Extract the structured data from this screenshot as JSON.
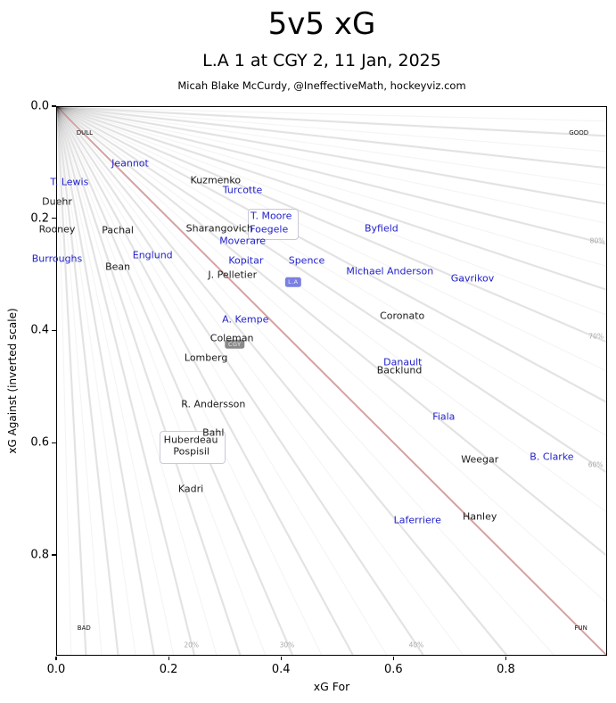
{
  "chart_data": {
    "type": "scatter",
    "title": "5v5 xG",
    "subtitle": "L.A 1 at CGY 2, 11 Jan, 2025",
    "attribution": "Micah Blake McCurdy, @IneffectiveMath, hockeyviz.com",
    "xlabel": "xG For",
    "ylabel": "xG Against (inverted scale)",
    "xlim": [
      0,
      0.98
    ],
    "ylim": [
      0,
      0.98
    ],
    "y_axis_inverted": true,
    "grid": "radial-percentage-fan",
    "x_ticks": {
      "values": [
        0,
        0.2,
        0.4,
        0.6,
        0.8
      ],
      "labels": [
        "0.0",
        "0.2",
        "0.4",
        "0.6",
        "0.8"
      ]
    },
    "y_ticks": {
      "values": [
        0,
        0.2,
        0.4,
        0.6,
        0.8
      ],
      "labels": [
        "0.0",
        "0.2",
        "0.4",
        "0.6",
        "0.8"
      ]
    },
    "fan": {
      "pct_step": 2.5,
      "pct_min": 2.5,
      "pct_max": 97.5,
      "thick_every": 5,
      "line_color": "#000000",
      "fifty_pct_color": "#c98b8b"
    },
    "pct_labels": [
      {
        "text": "80%",
        "x": 0.961,
        "y": 0.239
      },
      {
        "text": "70%",
        "x": 0.959,
        "y": 0.409
      },
      {
        "text": "60%",
        "x": 0.958,
        "y": 0.638
      },
      {
        "text": "40%",
        "x": 0.639,
        "y": 0.959
      },
      {
        "text": "30%",
        "x": 0.409,
        "y": 0.959
      },
      {
        "text": "20%",
        "x": 0.239,
        "y": 0.959
      }
    ],
    "corner_labels": [
      {
        "text": "DULL",
        "x": 0.049,
        "y": 0.046
      },
      {
        "text": "GOOD",
        "x": 0.928,
        "y": 0.046
      },
      {
        "text": "BAD",
        "x": 0.048,
        "y": 0.929
      },
      {
        "text": "FUN",
        "x": 0.932,
        "y": 0.929
      }
    ],
    "series": [
      {
        "name": "L.A",
        "color": "#2222cc",
        "points": [
          {
            "label": "Jeannot",
            "x": 0.13,
            "y": 0.1
          },
          {
            "label": "T. Lewis",
            "x": 0.022,
            "y": 0.134
          },
          {
            "label": "Burroughs",
            "x": 0.0,
            "y": 0.27
          },
          {
            "label": "Englund",
            "x": 0.17,
            "y": 0.264
          },
          {
            "label": "Turcotte",
            "x": 0.33,
            "y": 0.148
          },
          {
            "label": "T. Moore",
            "x": 0.381,
            "y": 0.194
          },
          {
            "label": "Foegele",
            "x": 0.377,
            "y": 0.218
          },
          {
            "label": "Moverare",
            "x": 0.33,
            "y": 0.239
          },
          {
            "label": "Kopitar",
            "x": 0.336,
            "y": 0.274
          },
          {
            "label": "Spence",
            "x": 0.444,
            "y": 0.274
          },
          {
            "label": "Byfield",
            "x": 0.577,
            "y": 0.216
          },
          {
            "label": "Michael Anderson",
            "x": 0.592,
            "y": 0.293
          },
          {
            "label": "Gavrikov",
            "x": 0.739,
            "y": 0.305
          },
          {
            "label": "A. Kempe",
            "x": 0.335,
            "y": 0.379
          },
          {
            "label": "Danault",
            "x": 0.615,
            "y": 0.455
          },
          {
            "label": "Fiala",
            "x": 0.688,
            "y": 0.552
          },
          {
            "label": "B. Clarke",
            "x": 0.88,
            "y": 0.624
          },
          {
            "label": "Laferriere",
            "x": 0.641,
            "y": 0.737
          }
        ]
      },
      {
        "name": "CGY",
        "color": "#1a1a1a",
        "points": [
          {
            "label": "Kuzmenko",
            "x": 0.282,
            "y": 0.13
          },
          {
            "label": "Duehr",
            "x": 0.0,
            "y": 0.169
          },
          {
            "label": "Rooney",
            "x": 0.0,
            "y": 0.218
          },
          {
            "label": "Pachal",
            "x": 0.108,
            "y": 0.22
          },
          {
            "label": "Sharangovich",
            "x": 0.289,
            "y": 0.216
          },
          {
            "label": "Bean",
            "x": 0.108,
            "y": 0.285
          },
          {
            "label": "J. Pelletier",
            "x": 0.312,
            "y": 0.299
          },
          {
            "label": "Coronato",
            "x": 0.614,
            "y": 0.372
          },
          {
            "label": "Coleman",
            "x": 0.311,
            "y": 0.412
          },
          {
            "label": "Lomberg",
            "x": 0.265,
            "y": 0.447
          },
          {
            "label": "Backlund",
            "x": 0.609,
            "y": 0.469
          },
          {
            "label": "R. Andersson",
            "x": 0.278,
            "y": 0.53
          },
          {
            "label": "Bahl",
            "x": 0.278,
            "y": 0.581
          },
          {
            "label": "Huberdeau",
            "x": 0.238,
            "y": 0.593
          },
          {
            "label": "Pospisil",
            "x": 0.239,
            "y": 0.614
          },
          {
            "label": "Kadri",
            "x": 0.238,
            "y": 0.681
          },
          {
            "label": "Weegar",
            "x": 0.752,
            "y": 0.628
          },
          {
            "label": "Hanley",
            "x": 0.752,
            "y": 0.73
          }
        ]
      }
    ],
    "team_badges": [
      {
        "label": "L.A",
        "x": 0.42,
        "y": 0.312,
        "bg": "#7b80e2"
      },
      {
        "label": "CGY",
        "x": 0.316,
        "y": 0.423,
        "bg": "#8a8a8a"
      }
    ],
    "label_boxes": [
      {
        "x1": 0.339,
        "y1": 0.181,
        "x2": 0.427,
        "y2": 0.234
      },
      {
        "x1": 0.182,
        "y1": 0.577,
        "x2": 0.297,
        "y2": 0.633
      }
    ]
  }
}
